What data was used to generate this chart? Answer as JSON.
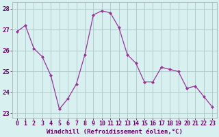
{
  "x": [
    0,
    1,
    2,
    3,
    4,
    5,
    6,
    7,
    8,
    9,
    10,
    11,
    12,
    13,
    14,
    15,
    16,
    17,
    18,
    19,
    20,
    21,
    22,
    23
  ],
  "y": [
    26.9,
    27.2,
    26.1,
    25.7,
    24.8,
    23.2,
    23.7,
    24.4,
    25.8,
    27.7,
    27.9,
    27.8,
    27.1,
    25.8,
    25.4,
    24.5,
    24.5,
    25.2,
    25.1,
    25.0,
    24.2,
    24.3,
    23.8,
    23.3
  ],
  "line_color": "#993399",
  "marker": "D",
  "marker_size": 2,
  "bg_color": "#d9f0f0",
  "grid_color": "#b0cccc",
  "xlabel": "Windchill (Refroidissement éolien,°C)",
  "xlim": [
    -0.5,
    23.5
  ],
  "ylim": [
    22.8,
    28.3
  ],
  "yticks": [
    23,
    24,
    25,
    26,
    27,
    28
  ],
  "xticks": [
    0,
    1,
    2,
    3,
    4,
    5,
    6,
    7,
    8,
    9,
    10,
    11,
    12,
    13,
    14,
    15,
    16,
    17,
    18,
    19,
    20,
    21,
    22,
    23
  ],
  "xlabel_color": "#660066",
  "xlabel_fontsize": 6.5,
  "tick_fontsize": 6.0,
  "ytick_fontsize": 6.5
}
